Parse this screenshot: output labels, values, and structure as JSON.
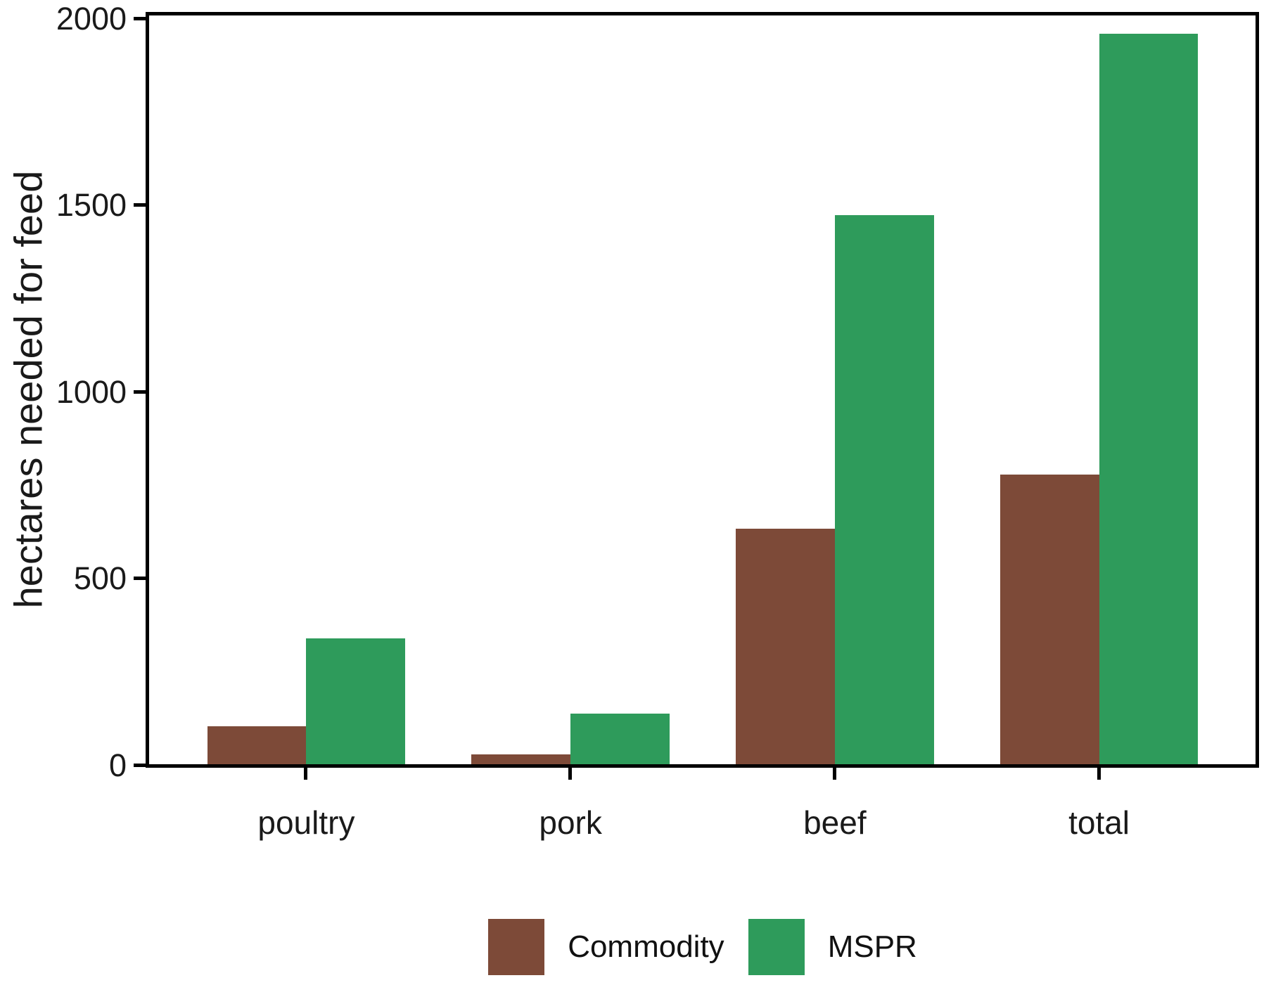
{
  "figure": {
    "title": "",
    "text_color": "#1a1a1a",
    "axis_line_color": "#000000",
    "background_color": "#ffffff"
  },
  "chart_data": {
    "type": "bar",
    "categories": [
      "poultry",
      "pork",
      "beef",
      "total"
    ],
    "series": [
      {
        "name": "Commodity",
        "color": "#7d4a38",
        "values": [
          105,
          30,
          635,
          780
        ]
      },
      {
        "name": "MSPR",
        "color": "#2e9b5b",
        "values": [
          340,
          140,
          1475,
          1960
        ]
      }
    ],
    "title": "",
    "xlabel": "",
    "ylabel": "hectares needed for feed",
    "ylim": [
      0,
      2000
    ],
    "yticks": [
      0,
      500,
      1000,
      1500,
      2000
    ],
    "ytick_labels": [
      "0",
      "500",
      "1000",
      "1500",
      "2000"
    ],
    "grid": false,
    "legend_position": "bottom",
    "bar_layout": "grouped"
  }
}
